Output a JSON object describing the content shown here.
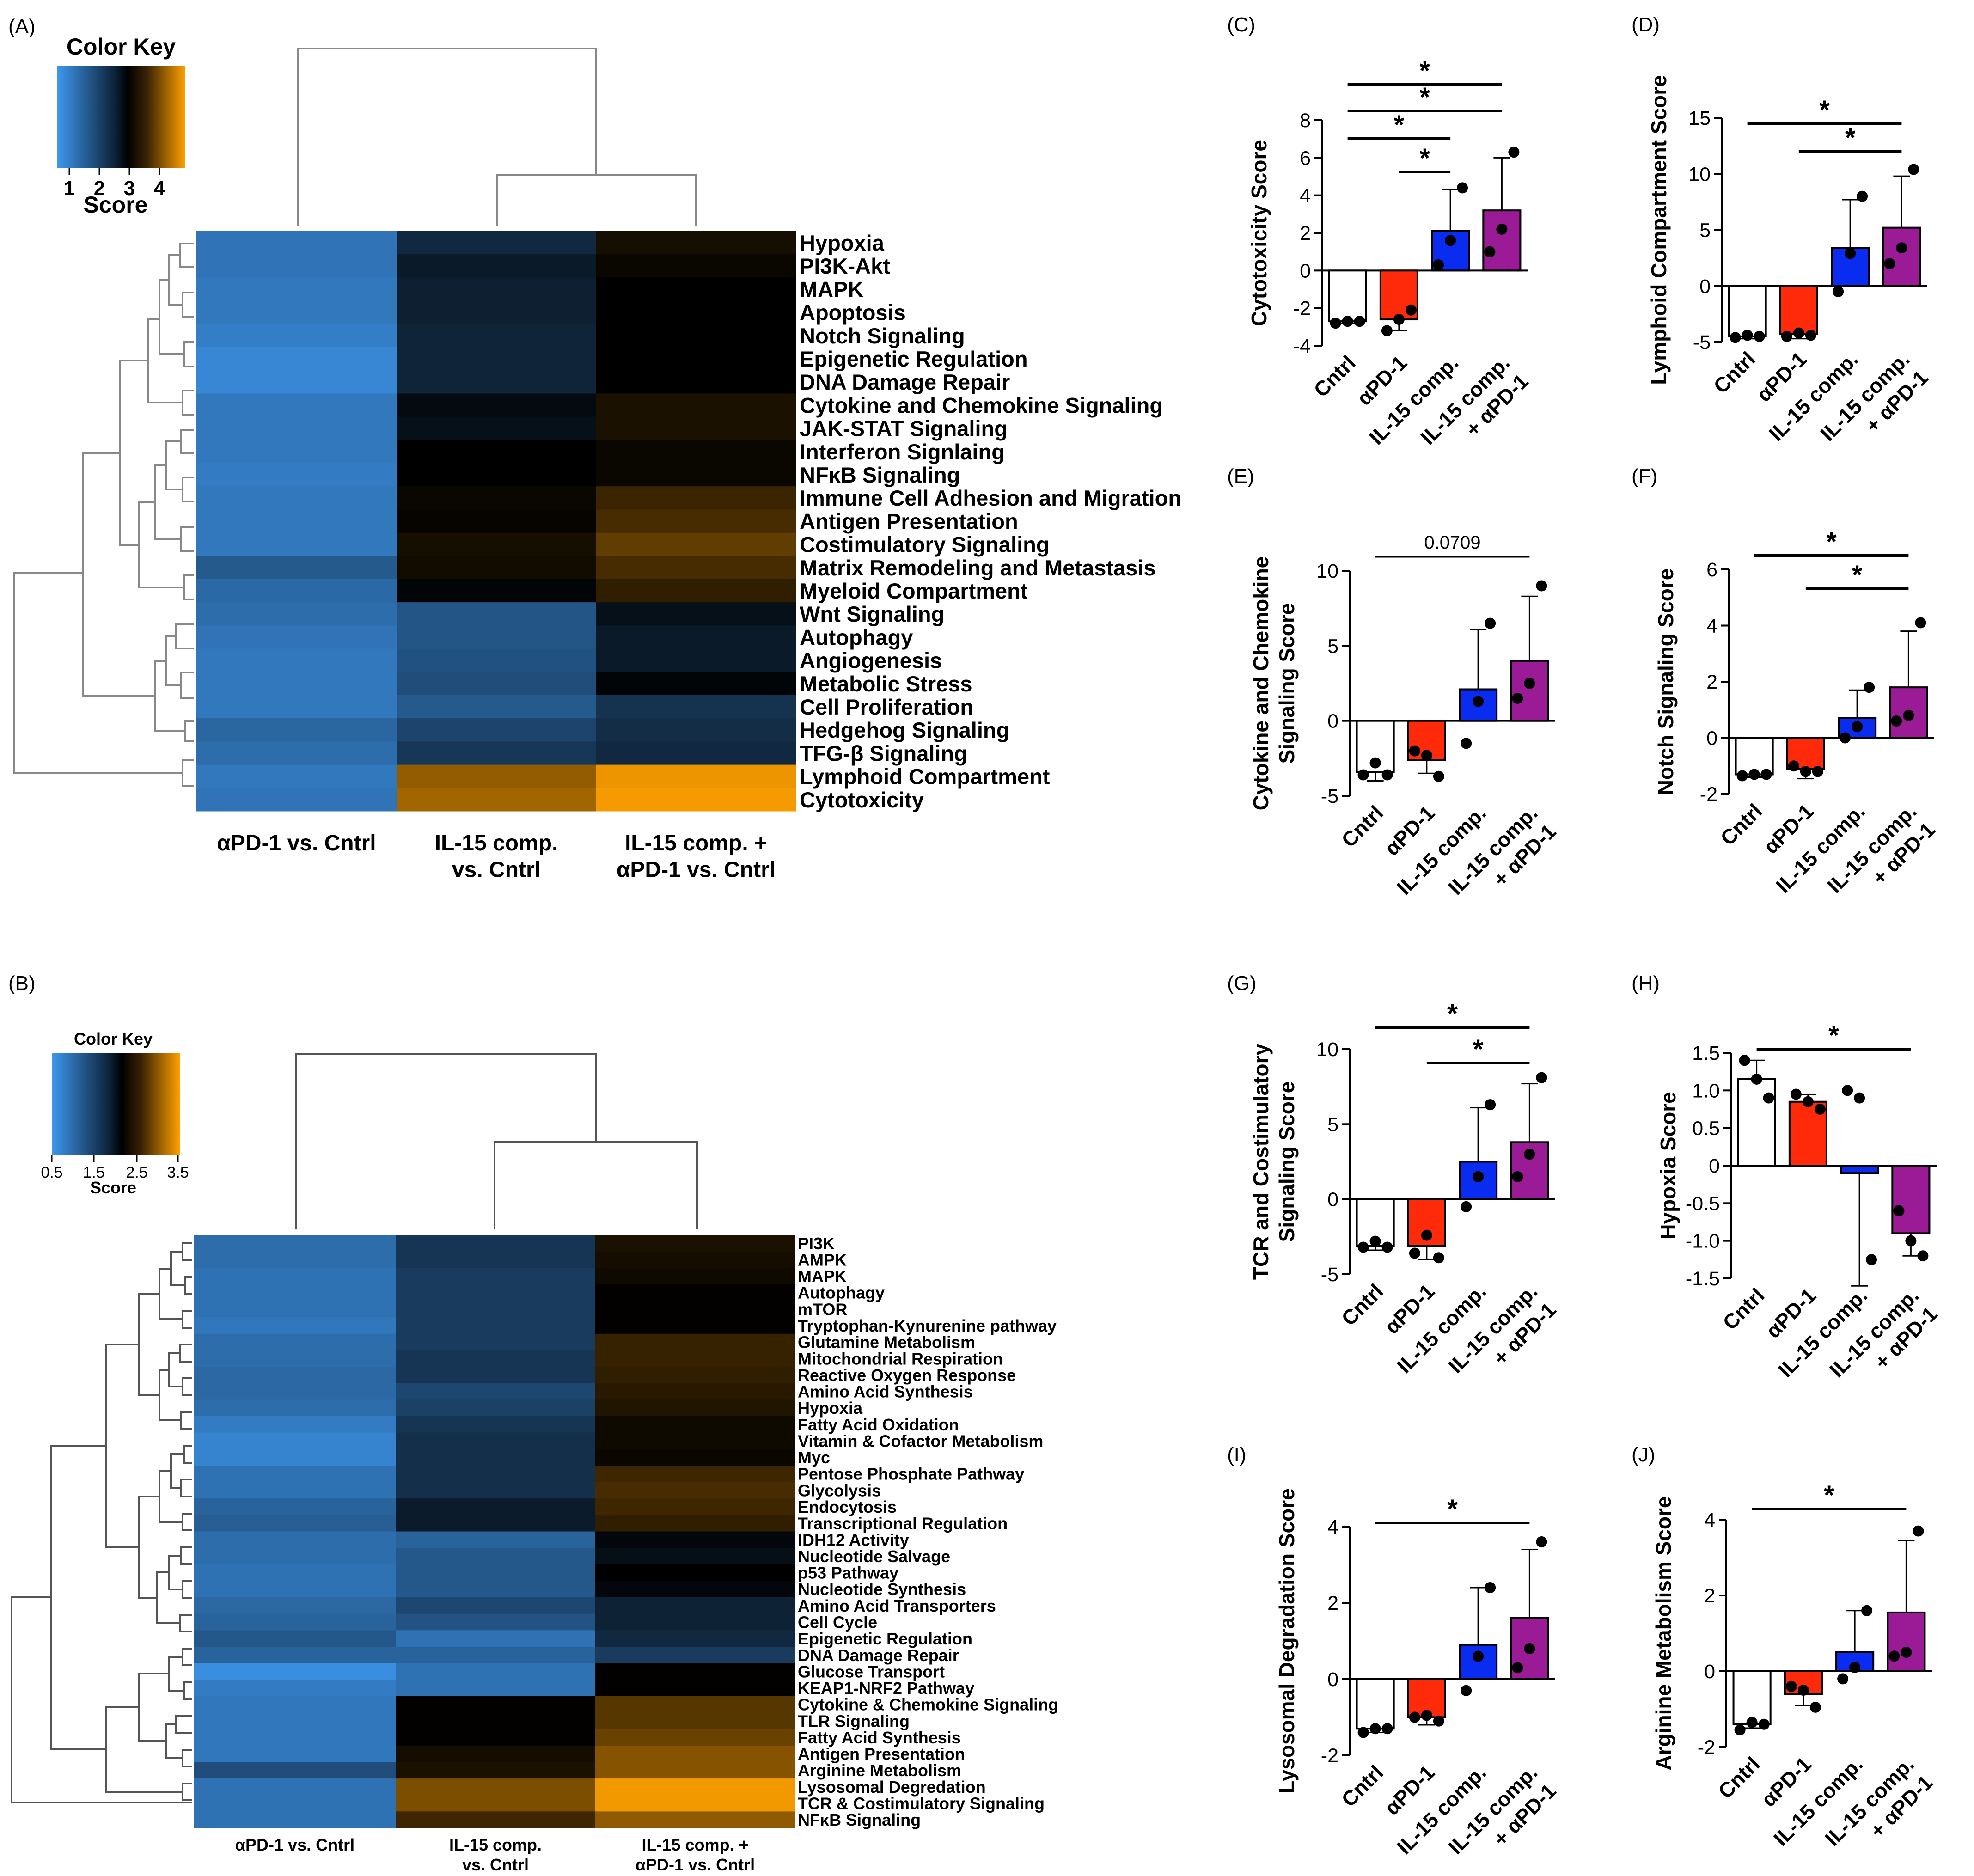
{
  "figure": {
    "panel_labels": [
      "(A)",
      "(B)",
      "(C)",
      "(D)",
      "(E)",
      "(F)",
      "(G)",
      "(H)",
      "(I)",
      "(J)"
    ]
  },
  "colors": {
    "scale_low": "#3e97ee",
    "scale_mid": "#000000",
    "scale_high": "#fea000",
    "bar_cntrl": "#ffffff",
    "bar_apd1": "#fe2a0a",
    "bar_il15": "#0a2bf0",
    "bar_combo": "#9a1b95",
    "line": "#000000"
  },
  "chart_data": [
    {
      "id": "A",
      "type": "heatmap",
      "title": "",
      "color_key": {
        "title": "Color Key",
        "label": "Score",
        "ticks": [
          "1",
          "2",
          "3",
          "4"
        ],
        "range": [
          0.5,
          4.5
        ]
      },
      "columns": [
        "αPD-1 vs. Cntrl",
        "IL-15 comp.\nvs. Cntrl",
        "IL-15 comp. +\nαPD-1 vs. Cntrl"
      ],
      "rows": [
        "Hypoxia",
        "PI3K-Akt",
        "MAPK",
        "Apoptosis",
        "Notch Signaling",
        "Epigenetic Regulation",
        "DNA Damage Repair",
        "Cytokine and Chemokine Signaling",
        "JAK-STAT Signaling",
        "Interferon Signlaing",
        "NFκB Signaling",
        "Immune Cell Adhesion and Migration",
        "Antigen Presentation",
        "Costimulatory Signaling",
        "Matrix Remodeling and Metastasis",
        "Myeloid Compartment",
        "Wnt Signaling",
        "Autophagy",
        "Angiogenesis",
        "Metabolic Stress",
        "Cell Proliferation",
        "Hedgehog Signaling",
        "TFG-β Signaling",
        "Lymphoid Compartment",
        "Cytotoxicity"
      ],
      "values": [
        [
          1.2,
          2.1,
          2.85
        ],
        [
          1.2,
          2.25,
          2.7
        ],
        [
          1.15,
          2.2,
          2.5
        ],
        [
          1.15,
          2.2,
          2.5
        ],
        [
          1.05,
          2.15,
          2.5
        ],
        [
          0.9,
          2.15,
          2.5
        ],
        [
          0.9,
          2.15,
          2.5
        ],
        [
          1.15,
          2.4,
          2.9
        ],
        [
          1.15,
          2.35,
          2.9
        ],
        [
          1.15,
          2.5,
          2.7
        ],
        [
          1.1,
          2.5,
          2.7
        ],
        [
          1.15,
          2.7,
          3.2
        ],
        [
          1.15,
          2.65,
          3.3
        ],
        [
          1.15,
          2.85,
          3.5
        ],
        [
          1.55,
          2.8,
          3.3
        ],
        [
          1.35,
          2.45,
          3.1
        ],
        [
          1.3,
          1.6,
          2.35
        ],
        [
          1.2,
          1.6,
          2.25
        ],
        [
          1.15,
          1.65,
          2.25
        ],
        [
          1.15,
          1.7,
          2.45
        ],
        [
          1.15,
          1.55,
          2.0
        ],
        [
          1.4,
          1.8,
          2.05
        ],
        [
          1.3,
          1.95,
          2.1
        ],
        [
          1.15,
          3.85,
          4.4
        ],
        [
          1.2,
          3.95,
          4.45
        ]
      ],
      "dendrogram_rows": true,
      "dendrogram_columns": true
    },
    {
      "id": "B",
      "type": "heatmap",
      "title": "",
      "color_key": {
        "title": "Color Key",
        "label": "Score",
        "ticks": [
          "0.5",
          "1.5",
          "2.5",
          "3.5"
        ],
        "range": [
          0.5,
          3.5
        ]
      },
      "columns": [
        "αPD-1 vs. Cntrl",
        "IL-15 comp.\nvs. Cntrl",
        "IL-15 comp. +\nαPD-1 vs. Cntrl"
      ],
      "rows": [
        "PI3K",
        "AMPK",
        "MAPK",
        "Autophagy",
        "mTOR",
        "Tryptophan-Kynurenine pathway",
        "Glutamine Metabolism",
        "Mitochondrial Respiration",
        "Reactive Oxygen Response",
        "Amino Acid Synthesis",
        "Hypoxia",
        "Fatty Acid Oxidation",
        "Vitamin & Cofactor Metabolism",
        "Myc",
        "Pentose Phosphate Pathway",
        "Glycolysis",
        "Endocytosis",
        "Transcriptional Regulation",
        "IDH12 Activity",
        "Nucleotide Salvage",
        "p53 Pathway",
        "Nucleotide Synthesis",
        "Amino Acid Transporters",
        "Cell Cycle",
        "Epigenetic Regulation",
        "DNA Damage Repair",
        "Glucose Transport",
        "KEAP1-NRF2 Pathway",
        "Cytokine & Chemokine Signaling",
        "TLR Signaling",
        "Fatty Acid Synthesis",
        "Antigen Presentation",
        "Arginine Metabolism",
        "Lysosomal Degredation",
        "TCR & Costimulatory Signaling",
        "NFκB Signaling"
      ],
      "values": [
        [
          1.1,
          1.6,
          2.3
        ],
        [
          1.1,
          1.6,
          2.25
        ],
        [
          1.05,
          1.55,
          2.2
        ],
        [
          1.05,
          1.55,
          2.05
        ],
        [
          1.05,
          1.55,
          2.05
        ],
        [
          1.0,
          1.55,
          2.05
        ],
        [
          1.1,
          1.55,
          2.5
        ],
        [
          1.1,
          1.6,
          2.5
        ],
        [
          1.15,
          1.6,
          2.45
        ],
        [
          1.15,
          1.45,
          2.4
        ],
        [
          1.1,
          1.5,
          2.35
        ],
        [
          0.95,
          1.6,
          2.2
        ],
        [
          0.85,
          1.65,
          2.2
        ],
        [
          0.85,
          1.65,
          2.15
        ],
        [
          1.05,
          1.65,
          2.55
        ],
        [
          1.05,
          1.65,
          2.6
        ],
        [
          1.2,
          1.8,
          2.55
        ],
        [
          1.25,
          1.8,
          2.45
        ],
        [
          1.1,
          1.2,
          1.95
        ],
        [
          1.1,
          1.3,
          1.9
        ],
        [
          1.05,
          1.3,
          2.0
        ],
        [
          1.05,
          1.3,
          1.95
        ],
        [
          1.15,
          1.45,
          1.75
        ],
        [
          1.2,
          1.35,
          1.75
        ],
        [
          1.3,
          1.05,
          1.7
        ],
        [
          1.2,
          1.2,
          1.55
        ],
        [
          0.7,
          1.05,
          2.05
        ],
        [
          0.95,
          1.05,
          2.05
        ],
        [
          1.0,
          2.05,
          2.7
        ],
        [
          1.0,
          2.05,
          2.7
        ],
        [
          1.0,
          2.05,
          2.8
        ],
        [
          1.0,
          2.25,
          2.95
        ],
        [
          1.4,
          2.3,
          2.95
        ],
        [
          1.05,
          2.9,
          3.45
        ],
        [
          1.05,
          2.9,
          3.45
        ],
        [
          1.05,
          2.55,
          3.0
        ]
      ],
      "dendrogram_rows": true,
      "dendrogram_columns": true
    },
    {
      "id": "C",
      "type": "bar",
      "title": "",
      "categories": [
        "Cntrl",
        "αPD-1",
        "IL-15 comp.",
        "IL-15 comp.\n+ αPD-1"
      ],
      "values": [
        -2.7,
        -2.6,
        2.1,
        3.2
      ],
      "errors": [
        0.1,
        0.6,
        2.2,
        2.8
      ],
      "points": [
        [
          -2.8,
          -2.7,
          -2.7
        ],
        [
          -3.2,
          -2.6,
          -2.1
        ],
        [
          0.3,
          1.6,
          4.4
        ],
        [
          1.0,
          2.2,
          6.3
        ]
      ],
      "ylabel": "Cytotoxicity Score",
      "ylim": [
        -4,
        8
      ],
      "yticks": [
        {
          "v": -4,
          "t": "-4"
        },
        {
          "v": -2,
          "t": "-2"
        },
        {
          "v": 0,
          "t": "0"
        },
        {
          "v": 2,
          "t": "2"
        },
        {
          "v": 4,
          "t": "4"
        },
        {
          "v": 6,
          "t": "6"
        },
        {
          "v": 8,
          "t": "8"
        }
      ],
      "annotations": [
        {
          "from": 2,
          "to": 3,
          "label": "*"
        },
        {
          "from": 1,
          "to": 3,
          "label": "*"
        },
        {
          "from": 1,
          "to": 4,
          "label": "*"
        },
        {
          "from": 1,
          "to": 4,
          "label": "*"
        }
      ]
    },
    {
      "id": "D",
      "type": "bar",
      "title": "",
      "categories": [
        "Cntrl",
        "αPD-1",
        "IL-15 comp.",
        "IL-15 comp.\n+ αPD-1"
      ],
      "values": [
        -4.5,
        -4.3,
        3.4,
        5.2
      ],
      "errors": [
        0.2,
        0.4,
        4.3,
        4.6
      ],
      "points": [
        [
          -4.6,
          -4.4,
          -4.5
        ],
        [
          -4.5,
          -4.2,
          -4.4
        ],
        [
          -0.5,
          2.9,
          8.0
        ],
        [
          2.0,
          3.4,
          10.4
        ]
      ],
      "ylabel": "Lymphoid Compartment Score",
      "ylim": [
        -5,
        15
      ],
      "yticks": [
        {
          "v": -5,
          "t": "-5"
        },
        {
          "v": 0,
          "t": "0"
        },
        {
          "v": 5,
          "t": "5"
        },
        {
          "v": 10,
          "t": "10"
        },
        {
          "v": 15,
          "t": "15"
        }
      ],
      "annotations": [
        {
          "from": 2,
          "to": 4,
          "label": "*"
        },
        {
          "from": 1,
          "to": 4,
          "label": "*"
        }
      ]
    },
    {
      "id": "E",
      "type": "bar",
      "title": "",
      "categories": [
        "Cntrl",
        "αPD-1",
        "IL-15 comp.",
        "IL-15 comp.\n+ αPD-1"
      ],
      "values": [
        -3.4,
        -2.6,
        2.1,
        4.0
      ],
      "errors": [
        0.6,
        0.9,
        4.0,
        4.3
      ],
      "points": [
        [
          -3.6,
          -2.8,
          -3.6
        ],
        [
          -2.0,
          -2.3,
          -3.7
        ],
        [
          -1.5,
          1.3,
          6.5
        ],
        [
          1.5,
          2.5,
          9.0
        ]
      ],
      "ylabel": "Cytokine and Chemokine\nSignaling  Score",
      "ylim": [
        -5,
        10
      ],
      "yticks": [
        {
          "v": -5,
          "t": "-5"
        },
        {
          "v": 0,
          "t": "0"
        },
        {
          "v": 5,
          "t": "5"
        },
        {
          "v": 10,
          "t": "10"
        }
      ],
      "annotations": [
        {
          "from": 1,
          "to": 4,
          "label": "0.0709"
        }
      ]
    },
    {
      "id": "F",
      "type": "bar",
      "title": "",
      "categories": [
        "Cntrl",
        "αPD-1",
        "IL-15 comp.",
        "IL-15 comp.\n+ αPD-1"
      ],
      "values": [
        -1.3,
        -1.1,
        0.7,
        1.8
      ],
      "errors": [
        0.1,
        0.35,
        1.0,
        2.0
      ],
      "points": [
        [
          -1.35,
          -1.3,
          -1.3
        ],
        [
          -1.0,
          -1.2,
          -1.2
        ],
        [
          0.0,
          0.4,
          1.8
        ],
        [
          0.6,
          0.8,
          4.1
        ]
      ],
      "ylabel": "Notch Signaling Score",
      "ylim": [
        -2,
        6
      ],
      "yticks": [
        {
          "v": -2,
          "t": "-2"
        },
        {
          "v": 0,
          "t": "0"
        },
        {
          "v": 2,
          "t": "2"
        },
        {
          "v": 4,
          "t": "4"
        },
        {
          "v": 6,
          "t": "6"
        }
      ],
      "annotations": [
        {
          "from": 2,
          "to": 4,
          "label": "*"
        },
        {
          "from": 1,
          "to": 4,
          "label": "*"
        }
      ]
    },
    {
      "id": "G",
      "type": "bar",
      "title": "",
      "categories": [
        "Cntrl",
        "αPD-1",
        "IL-15 comp.",
        "IL-15 comp.\n+ αPD-1"
      ],
      "values": [
        -3.1,
        -3.1,
        2.5,
        3.8
      ],
      "errors": [
        0.3,
        0.9,
        3.6,
        3.9
      ],
      "points": [
        [
          -3.2,
          -2.8,
          -3.2
        ],
        [
          -3.6,
          -2.4,
          -3.9
        ],
        [
          -0.5,
          1.5,
          6.3
        ],
        [
          1.5,
          3.0,
          8.1
        ]
      ],
      "ylabel": "TCR and Costimulatory\nSignaling  Score",
      "ylim": [
        -5,
        10
      ],
      "yticks": [
        {
          "v": -5,
          "t": "-5"
        },
        {
          "v": 0,
          "t": "0"
        },
        {
          "v": 5,
          "t": "5"
        },
        {
          "v": 10,
          "t": "10"
        }
      ],
      "annotations": [
        {
          "from": 2,
          "to": 4,
          "label": "*"
        },
        {
          "from": 1,
          "to": 4,
          "label": "*"
        }
      ]
    },
    {
      "id": "H",
      "type": "bar",
      "title": "",
      "categories": [
        "Cntrl",
        "αPD-1",
        "IL-15 comp.",
        "IL-15 comp.\n+ αPD-1"
      ],
      "values": [
        1.15,
        0.85,
        -0.1,
        -0.9
      ],
      "errors": [
        0.25,
        0.1,
        1.5,
        0.3
      ],
      "points": [
        [
          1.4,
          1.15,
          0.9
        ],
        [
          0.95,
          0.85,
          0.75
        ],
        [
          1.0,
          0.9,
          -1.25
        ],
        [
          -0.6,
          -1.0,
          -1.2
        ]
      ],
      "ylabel": "Hypoxia Score",
      "ylim": [
        -1.5,
        1.5
      ],
      "yticks": [
        {
          "v": -1.5,
          "t": "-1.5"
        },
        {
          "v": -1,
          "t": "-1.0"
        },
        {
          "v": -0.5,
          "t": "-0.5"
        },
        {
          "v": 0,
          "t": "0"
        },
        {
          "v": 0.5,
          "t": "0.5"
        },
        {
          "v": 1,
          "t": "1.0"
        },
        {
          "v": 1.5,
          "t": "1.5"
        }
      ],
      "annotations": [
        {
          "from": 1,
          "to": 4,
          "label": "*"
        }
      ]
    },
    {
      "id": "I",
      "type": "bar",
      "title": "",
      "categories": [
        "Cntrl",
        "αPD-1",
        "IL-15 comp.",
        "IL-15 comp.\n+ αPD-1"
      ],
      "values": [
        -1.3,
        -1.0,
        0.9,
        1.6
      ],
      "errors": [
        0.1,
        0.2,
        1.5,
        1.8
      ],
      "points": [
        [
          -1.4,
          -1.3,
          -1.3
        ],
        [
          -1.0,
          -0.95,
          -1.1
        ],
        [
          -0.3,
          0.6,
          2.4
        ],
        [
          0.3,
          0.8,
          3.6
        ]
      ],
      "ylabel": "Lysosomal Degradation Score",
      "ylim": [
        -2,
        4
      ],
      "yticks": [
        {
          "v": -2,
          "t": "-2"
        },
        {
          "v": 0,
          "t": "0"
        },
        {
          "v": 2,
          "t": "2"
        },
        {
          "v": 4,
          "t": "4"
        }
      ],
      "annotations": [
        {
          "from": 1,
          "to": 4,
          "label": "*"
        }
      ]
    },
    {
      "id": "J",
      "type": "bar",
      "title": "",
      "categories": [
        "Cntrl",
        "αPD-1",
        "IL-15 comp.",
        "IL-15 comp.\n+ αPD-1"
      ],
      "values": [
        -1.4,
        -0.6,
        0.5,
        1.55
      ],
      "errors": [
        0.1,
        0.3,
        1.1,
        1.9
      ],
      "points": [
        [
          -1.55,
          -1.35,
          -1.4
        ],
        [
          -0.4,
          -0.5,
          -0.95
        ],
        [
          -0.2,
          0.1,
          1.6
        ],
        [
          0.4,
          0.5,
          3.7
        ]
      ],
      "ylabel": "Arginine Metabolism Score",
      "ylim": [
        -2,
        4
      ],
      "yticks": [
        {
          "v": -2,
          "t": "-2"
        },
        {
          "v": 0,
          "t": "0"
        },
        {
          "v": 2,
          "t": "2"
        },
        {
          "v": 4,
          "t": "4"
        }
      ],
      "annotations": [
        {
          "from": 1,
          "to": 4,
          "label": "*"
        }
      ]
    }
  ]
}
